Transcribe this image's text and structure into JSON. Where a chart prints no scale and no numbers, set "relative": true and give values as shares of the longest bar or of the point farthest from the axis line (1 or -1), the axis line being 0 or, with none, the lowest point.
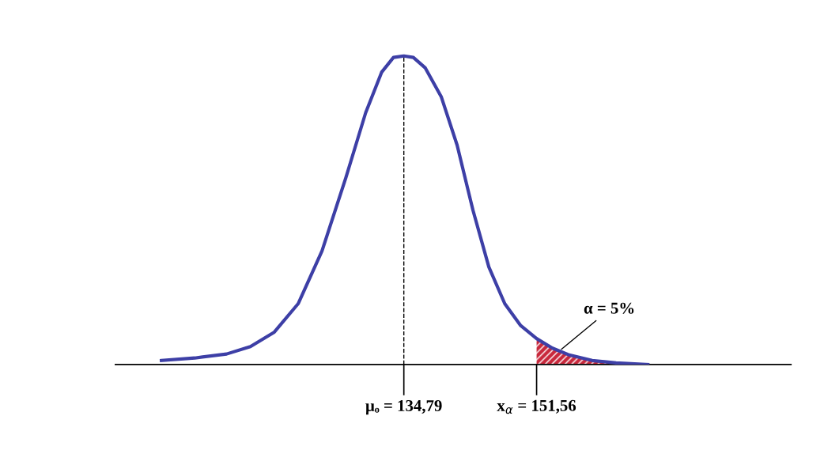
{
  "chart_data": {
    "type": "line",
    "relative": true,
    "xlim": [
      98.35,
      183.7
    ],
    "xticks": [
      {
        "value": 134.79,
        "label": "μₒ = 134,79"
      },
      {
        "value": 151.56,
        "label": "x$_{α}$ = 151,56"
      }
    ],
    "series": [
      {
        "color": "#3d3fa6",
        "x": [
          104.17,
          108.38,
          112.4,
          115.41,
          118.43,
          121.44,
          124.45,
          127.46,
          129.97,
          131.98,
          133.48,
          134.79,
          135.99,
          137.5,
          139.51,
          141.52,
          143.52,
          145.53,
          147.54,
          149.55,
          151.56,
          153.57,
          155.57,
          158.58,
          161.6,
          165.61
        ],
        "values": [
          0.013,
          0.021,
          0.034,
          0.058,
          0.105,
          0.197,
          0.368,
          0.605,
          0.816,
          0.947,
          0.995,
          1.0,
          0.995,
          0.961,
          0.868,
          0.711,
          0.5,
          0.316,
          0.197,
          0.126,
          0.084,
          0.053,
          0.032,
          0.013,
          0.005,
          0.0
        ]
      },
      {
        "type": "area",
        "color": "#c8283c",
        "x": [
          151.56,
          153.57,
          155.57,
          158.58,
          161.6,
          165.61
        ],
        "values": [
          0.084,
          0.053,
          0.032,
          0.013,
          0.005,
          0.0
        ]
      }
    ],
    "ref_lines": [
      {
        "axis": "x",
        "value": 134.79,
        "color": "#000000",
        "line_style": "dashed"
      }
    ],
    "annotations": [
      {
        "text": "α = 5%",
        "x": 154.5,
        "y": 0.045
      }
    ]
  }
}
